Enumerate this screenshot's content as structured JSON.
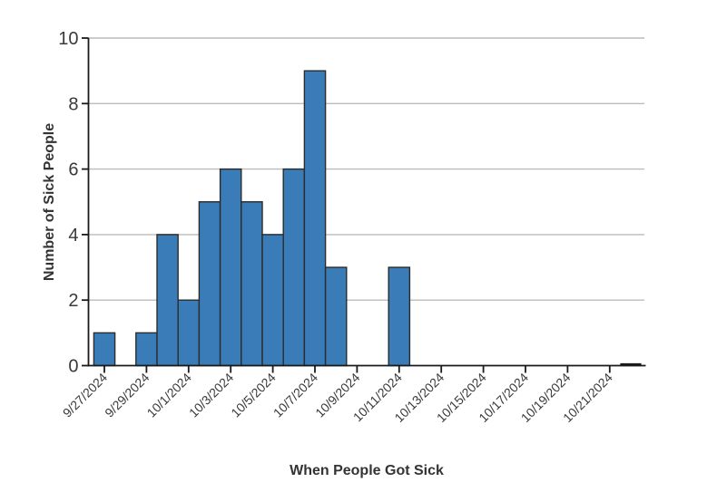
{
  "chart_data": {
    "type": "bar",
    "subtype": "epi-curve-histogram",
    "xlabel": "When People Got Sick",
    "ylabel": "Number of Sick People",
    "x": [
      "9/27/2024",
      "9/28/2024",
      "9/29/2024",
      "9/30/2024",
      "10/1/2024",
      "10/2/2024",
      "10/3/2024",
      "10/4/2024",
      "10/5/2024",
      "10/6/2024",
      "10/7/2024",
      "10/8/2024",
      "10/9/2024",
      "10/10/2024",
      "10/11/2024",
      "10/12/2024",
      "10/13/2024",
      "10/14/2024",
      "10/15/2024",
      "10/16/2024",
      "10/17/2024",
      "10/18/2024",
      "10/19/2024",
      "10/20/2024",
      "10/21/2024",
      "10/22/2024"
    ],
    "values": [
      1,
      0,
      1,
      4,
      2,
      5,
      6,
      5,
      4,
      6,
      9,
      3,
      0,
      0,
      3,
      0,
      0,
      0,
      0,
      0,
      0,
      0,
      0,
      0,
      0,
      0
    ],
    "x_tick_labels": [
      "9/27/2024",
      "9/29/2024",
      "10/1/2024",
      "10/3/2024",
      "10/5/2024",
      "10/7/2024",
      "10/9/2024",
      "10/11/2024",
      "10/13/2024",
      "10/15/2024",
      "10/17/2024",
      "10/19/2024",
      "10/21/2024"
    ],
    "x_tick_every_days": 2,
    "y_ticks": [
      0,
      2,
      4,
      6,
      8,
      10
    ],
    "ylim": [
      0,
      10
    ],
    "grid": "horizontal",
    "legend": "none",
    "flat_zero_bar_date": "10/22/2024",
    "colors": {
      "bar_fill": "#3a7cb8",
      "bar_stroke": "#2b2b2b",
      "grid_line": "#bbbbbb",
      "axis_line": "#1a1a1a",
      "tick_text": "#3a3a3a",
      "title_text": "#333333",
      "background": "#ffffff"
    }
  }
}
